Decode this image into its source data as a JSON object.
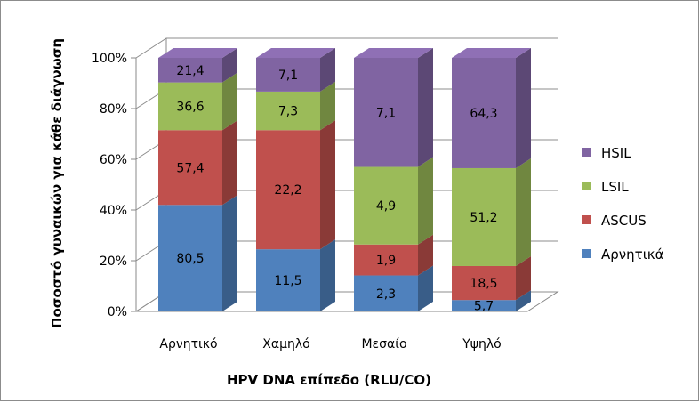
{
  "chart_data": {
    "type": "bar",
    "stacked": true,
    "percent_stacked": true,
    "three_d": true,
    "categories": [
      "Αρνητικό",
      "Χαμηλό",
      "Μεσαίο",
      "Υψηλό"
    ],
    "series": [
      {
        "name": "Αρνητικά",
        "color": "#4f81bd",
        "labels": [
          "80,5",
          "11,5",
          "2,3",
          "5,7"
        ],
        "pct": [
          42,
          24.5,
          14.2,
          4.5
        ]
      },
      {
        "name": "ASCUS",
        "color": "#c0504d",
        "labels": [
          "57,4",
          "22,2",
          "1,9",
          "18,5"
        ],
        "pct": [
          29.5,
          47,
          12.2,
          13.4
        ]
      },
      {
        "name": "LSIL",
        "color": "#9bbb59",
        "labels": [
          "36,6",
          "7,3",
          "4,9",
          "51,2"
        ],
        "pct": [
          18.8,
          15.2,
          30.6,
          38.6
        ]
      },
      {
        "name": "HSIL",
        "color": "#8064a2",
        "labels": [
          "21,4",
          "7,1",
          "7,1",
          "64,3"
        ],
        "pct": [
          9.7,
          13.3,
          43,
          43.5
        ]
      }
    ],
    "y_ticks": [
      "0%",
      "20%",
      "40%",
      "60%",
      "80%",
      "100%"
    ],
    "ylim": [
      0,
      100
    ],
    "xlabel": "HPV DNA επίπεδο (RLU/CO)",
    "ylabel": "Ποσοστό γυναικών για κάθε διάγνωση",
    "legend_position": "right",
    "grid": true
  }
}
